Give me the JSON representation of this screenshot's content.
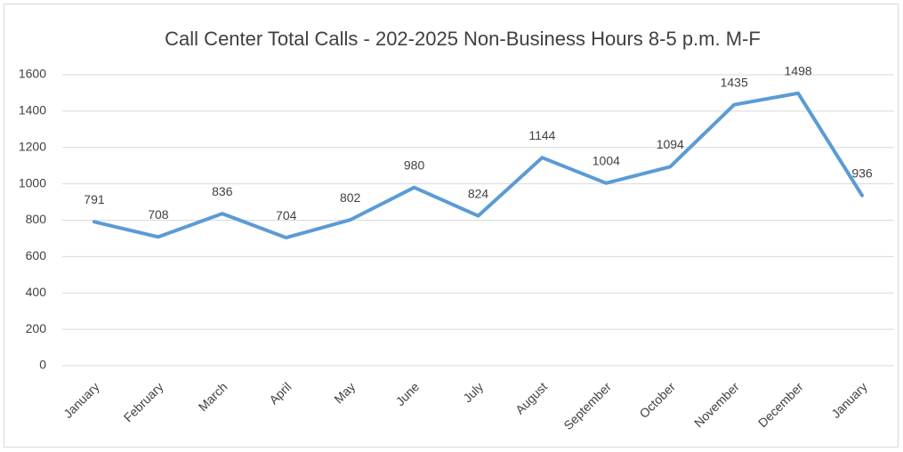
{
  "chart_data": {
    "type": "line",
    "title": "Call Center Total Calls - 202-2025 Non-Business Hours 8-5 p.m. M-F",
    "categories": [
      "January",
      "February",
      "March",
      "April",
      "May",
      "June",
      "July",
      "August",
      "September",
      "October",
      "November",
      "December",
      "January"
    ],
    "series": [
      {
        "name": "Total Calls",
        "color": "#5b9bd5",
        "values": [
          791,
          708,
          836,
          704,
          802,
          980,
          824,
          1144,
          1004,
          1094,
          1435,
          1498,
          936
        ]
      }
    ],
    "ylim": [
      0,
      1600
    ],
    "yticks": [
      0,
      200,
      400,
      600,
      800,
      1000,
      1200,
      1400,
      1600
    ],
    "grid": true
  }
}
